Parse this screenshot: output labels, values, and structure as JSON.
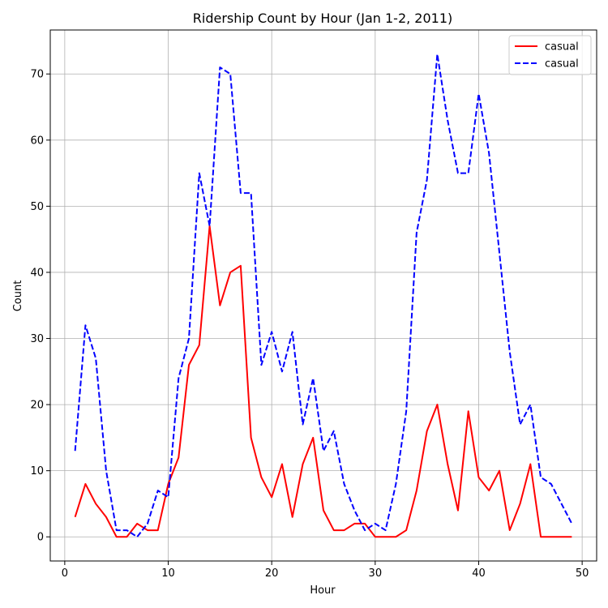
{
  "chart_data": {
    "type": "line",
    "title": "Ridership Count by Hour (Jan 1-2, 2011)",
    "xlabel": "Hour",
    "ylabel": "Count",
    "xlim": [
      -1.4,
      51.4
    ],
    "ylim": [
      -3.65,
      76.65
    ],
    "xticks": [
      0,
      10,
      20,
      30,
      40,
      50
    ],
    "yticks": [
      0,
      10,
      20,
      30,
      40,
      50,
      60,
      70
    ],
    "grid": true,
    "legend_position": "top-right",
    "x": [
      1,
      2,
      3,
      4,
      5,
      6,
      7,
      8,
      9,
      10,
      11,
      12,
      13,
      14,
      15,
      16,
      17,
      18,
      19,
      20,
      21,
      22,
      23,
      24,
      25,
      26,
      27,
      28,
      29,
      30,
      31,
      32,
      33,
      34,
      35,
      36,
      37,
      38,
      39,
      40,
      41,
      42,
      43,
      44,
      45,
      46,
      47,
      48,
      49
    ],
    "series": [
      {
        "name": "casual",
        "color": "#ff0000",
        "style": "solid",
        "values": [
          3,
          8,
          5,
          3,
          0,
          0,
          2,
          1,
          1,
          8,
          12,
          26,
          29,
          47,
          35,
          40,
          41,
          15,
          9,
          6,
          11,
          3,
          11,
          15,
          4,
          1,
          1,
          2,
          2,
          0,
          0,
          0,
          1,
          7,
          16,
          20,
          11,
          4,
          19,
          9,
          7,
          10,
          1,
          5,
          11,
          0,
          0,
          0,
          0
        ]
      },
      {
        "name": "casual",
        "color": "#0000ff",
        "style": "dashed",
        "values": [
          13,
          32,
          27,
          10,
          1,
          1,
          0,
          2,
          7,
          6,
          24,
          30,
          55,
          47,
          71,
          70,
          52,
          52,
          26,
          31,
          25,
          31,
          17,
          24,
          13,
          16,
          8,
          4,
          1,
          2,
          1,
          8,
          19,
          46,
          54,
          73,
          63,
          55,
          55,
          67,
          58,
          43,
          28,
          17,
          20,
          9,
          8,
          5,
          2
        ]
      }
    ]
  }
}
